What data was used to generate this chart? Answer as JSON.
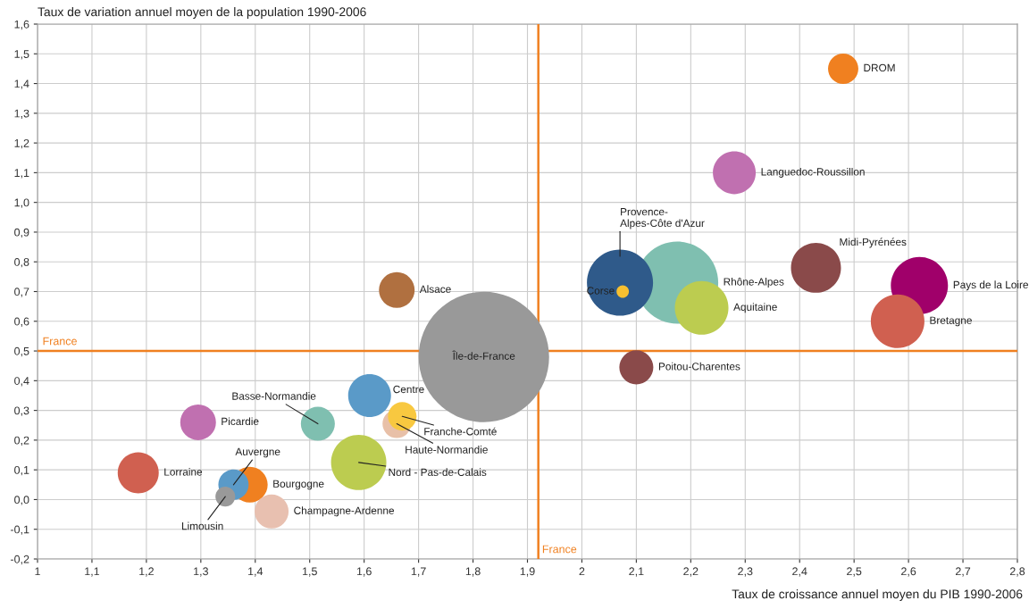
{
  "chart_data": {
    "type": "bubble",
    "xlabel": "Taux de croissance annuel moyen du PIB 1990-2006",
    "ylabel": "Taux de variation annuel moyen de la population 1990-2006",
    "xlim": [
      1,
      2.8
    ],
    "ylim": [
      -0.2,
      1.6
    ],
    "xticks": [
      1,
      {
        "value": 1.1,
        "label": "1,1"
      },
      {
        "value": 1.2,
        "label": "1,2"
      },
      {
        "value": 1.3,
        "label": "1,3"
      },
      {
        "value": 1.4,
        "label": "1,4"
      },
      {
        "value": 1.5,
        "label": "1,5"
      },
      {
        "value": 1.6,
        "label": "1,6"
      },
      {
        "value": 1.7,
        "label": "1,7"
      },
      {
        "value": 1.8,
        "label": "1,8"
      },
      {
        "value": 1.9,
        "label": "1,9"
      },
      2,
      {
        "value": 2.1,
        "label": "2,1"
      },
      {
        "value": 2.2,
        "label": "2,2"
      },
      {
        "value": 2.3,
        "label": "2,3"
      },
      {
        "value": 2.4,
        "label": "2,4"
      },
      {
        "value": 2.5,
        "label": "2,5"
      },
      {
        "value": 2.6,
        "label": "2,6"
      },
      {
        "value": 2.7,
        "label": "2,7"
      },
      {
        "value": 2.8,
        "label": "2,8"
      }
    ],
    "yticks": [
      {
        "value": -0.2,
        "label": "-0,2"
      },
      {
        "value": -0.1,
        "label": "-0,1"
      },
      {
        "value": 0,
        "label": "0,0"
      },
      {
        "value": 0.1,
        "label": "0,1"
      },
      {
        "value": 0.2,
        "label": "0,2"
      },
      {
        "value": 0.3,
        "label": "0,3"
      },
      {
        "value": 0.4,
        "label": "0,4"
      },
      {
        "value": 0.5,
        "label": "0,5"
      },
      {
        "value": 0.6,
        "label": "0,6"
      },
      {
        "value": 0.7,
        "label": "0,7"
      },
      {
        "value": 0.8,
        "label": "0,8"
      },
      {
        "value": 0.9,
        "label": "0,9"
      },
      {
        "value": 1.0,
        "label": "1,0"
      },
      {
        "value": 1.1,
        "label": "1,1"
      },
      {
        "value": 1.2,
        "label": "1,2"
      },
      {
        "value": 1.3,
        "label": "1,3"
      },
      {
        "value": 1.4,
        "label": "1,4"
      },
      {
        "value": 1.5,
        "label": "1,5"
      },
      {
        "value": 1.6,
        "label": "1,6"
      }
    ],
    "grid": true,
    "ref_lines": [
      {
        "axis": "y",
        "value": 0.5,
        "label": "France",
        "color": "#f08020"
      },
      {
        "axis": "x",
        "value": 1.92,
        "label": "France",
        "color": "#f08020"
      }
    ],
    "series": [
      {
        "name": "DROM",
        "color": "#f08020",
        "x": [
          2.48
        ],
        "values": [
          1.45
        ],
        "sizes": [
          0.054
        ]
      },
      {
        "name": "Languedoc-Roussillon",
        "color": "#c070b0",
        "x": [
          2.28
        ],
        "values": [
          1.1
        ],
        "sizes": [
          0.108
        ]
      },
      {
        "name": "Provence-\nAlpes-Côte d'Azur",
        "color": "#2f5a8a",
        "x": [
          2.07
        ],
        "values": [
          0.73
        ],
        "sizes": [
          0.257
        ]
      },
      {
        "name": "Rhône-Alpes",
        "color": "#7fbfb0",
        "x": [
          2.175
        ],
        "values": [
          0.73
        ],
        "sizes": [
          0.397
        ]
      },
      {
        "name": "Corse",
        "color": "#f8c030",
        "x": [
          2.075
        ],
        "values": [
          0.7
        ],
        "sizes": [
          0.009
        ]
      },
      {
        "name": "Aquitaine",
        "color": "#bccc50",
        "x": [
          2.22
        ],
        "values": [
          0.645
        ],
        "sizes": [
          0.169
        ]
      },
      {
        "name": "Midi-Pyrénées",
        "color": "#8a4a4a",
        "x": [
          2.43
        ],
        "values": [
          0.78
        ],
        "sizes": [
          0.147
        ]
      },
      {
        "name": "Pays de la Loire",
        "color": "#a0006a",
        "x": [
          2.62
        ],
        "values": [
          0.72
        ],
        "sizes": [
          0.192
        ]
      },
      {
        "name": "Bretagne",
        "color": "#d06050",
        "x": [
          2.58
        ],
        "values": [
          0.6
        ],
        "sizes": [
          0.169
        ]
      },
      {
        "name": "Poitou-Charentes",
        "color": "#8a4a4a",
        "x": [
          2.1
        ],
        "values": [
          0.445
        ],
        "sizes": [
          0.068
        ]
      },
      {
        "name": "Alsace",
        "color": "#b07040",
        "x": [
          1.66
        ],
        "values": [
          0.705
        ],
        "sizes": [
          0.075
        ]
      },
      {
        "name": "Île-de-France",
        "color": "#999999",
        "x": [
          1.82
        ],
        "values": [
          0.48
        ],
        "sizes": [
          1
        ]
      },
      {
        "name": "Centre",
        "color": "#5a9ac8",
        "x": [
          1.61
        ],
        "values": [
          0.35
        ],
        "sizes": [
          0.108
        ]
      },
      {
        "name": "Basse-Normandie",
        "color": "#7fbfb0",
        "x": [
          1.515
        ],
        "values": [
          0.255
        ],
        "sizes": [
          0.068
        ]
      },
      {
        "name": "Haute-Normandie",
        "color": "#e8c0a8",
        "x": [
          1.66
        ],
        "values": [
          0.255
        ],
        "sizes": [
          0.048
        ]
      },
      {
        "name": "Franche-Comté",
        "color": "#f8c840",
        "x": [
          1.67
        ],
        "values": [
          0.28
        ],
        "sizes": [
          0.048
        ]
      },
      {
        "name": "Nord - Pas-de-Calais",
        "color": "#bccc50",
        "x": [
          1.59
        ],
        "values": [
          0.125
        ],
        "sizes": [
          0.18
        ]
      },
      {
        "name": "Picardie",
        "color": "#c070b0",
        "x": [
          1.295
        ],
        "values": [
          0.26
        ],
        "sizes": [
          0.075
        ]
      },
      {
        "name": "Lorraine",
        "color": "#d06050",
        "x": [
          1.185
        ],
        "values": [
          0.09
        ],
        "sizes": [
          0.099
        ]
      },
      {
        "name": "Bourgogne",
        "color": "#f08020",
        "x": [
          1.39
        ],
        "values": [
          0.05
        ],
        "sizes": [
          0.075
        ]
      },
      {
        "name": "Auvergne",
        "color": "#5a9ac8",
        "x": [
          1.36
        ],
        "values": [
          0.05
        ],
        "sizes": [
          0.054
        ]
      },
      {
        "name": "Limousin",
        "color": "#999999",
        "x": [
          1.345
        ],
        "values": [
          0.01
        ],
        "sizes": [
          0.023
        ]
      },
      {
        "name": "Champagne-Ardenne",
        "color": "#e8c0b0",
        "x": [
          1.43
        ],
        "values": [
          -0.04
        ],
        "sizes": [
          0.068
        ]
      }
    ]
  }
}
